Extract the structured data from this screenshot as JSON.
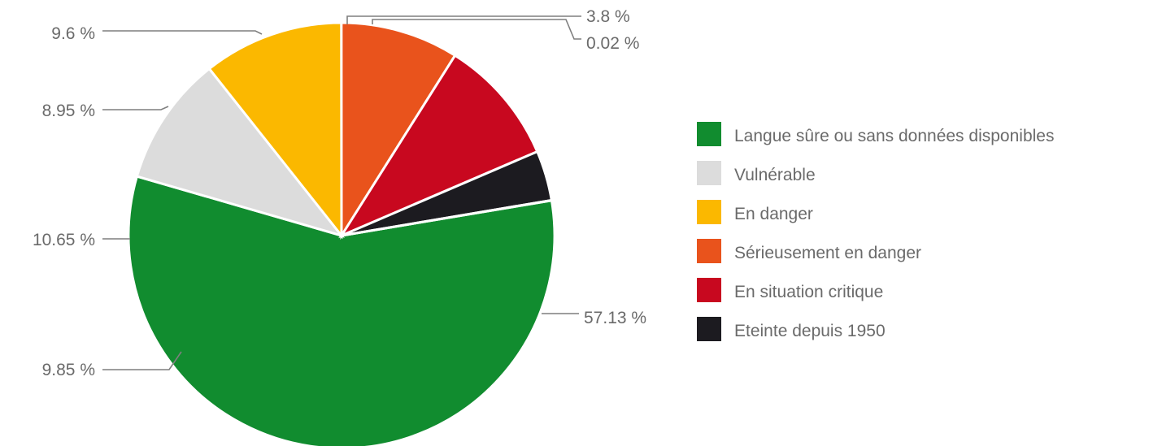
{
  "chart_data": {
    "type": "pie",
    "title": "",
    "legend_placement": "right",
    "series": [
      {
        "name": "Langue sûre ou sans données disponibles",
        "value": 57.13,
        "label": "57.13 %",
        "color": "#118c2f"
      },
      {
        "name": "Vulnérable",
        "value": 9.85,
        "label": "9.85 %",
        "color": "#dcdcdc"
      },
      {
        "name": "En danger",
        "value": 10.65,
        "label": "10.65 %",
        "color": "#fbb800"
      },
      {
        "name": "Sérieusement en danger",
        "value": 8.95,
        "label": "8.95 %",
        "color": "#e9531c"
      },
      {
        "name": "En situation critique",
        "value": 9.6,
        "label": "9.6 %",
        "color": "#c8081f"
      },
      {
        "name": "Eteinte depuis 1950",
        "value": 3.8,
        "label": "3.8 %",
        "color": "#1c1b20"
      },
      {
        "name": "",
        "value": 0.02,
        "label": "0.02 %",
        "color": "#1c1b20"
      }
    ]
  }
}
